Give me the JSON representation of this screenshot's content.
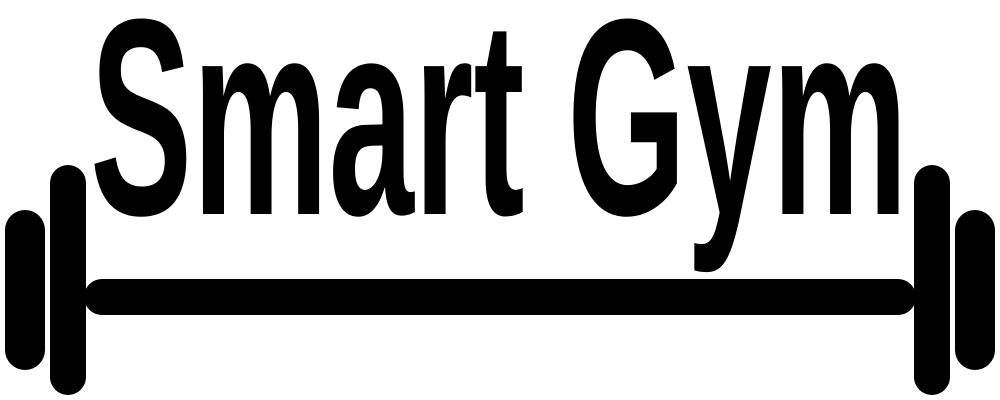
{
  "logo": {
    "text": "Smart Gym"
  }
}
